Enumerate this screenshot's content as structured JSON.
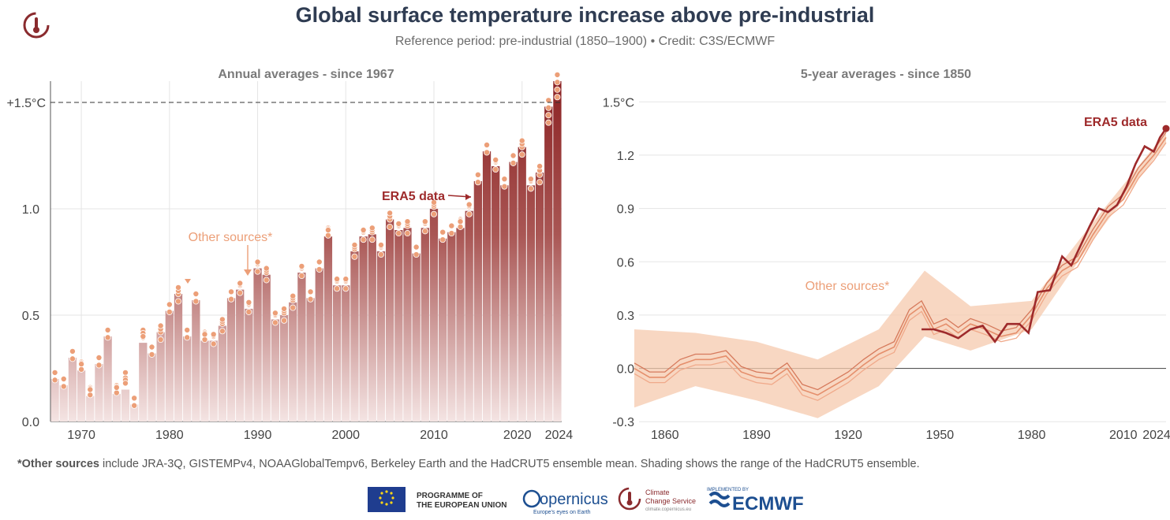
{
  "header": {
    "title": "Global surface temperature increase above pre-industrial",
    "subtitle": "Reference period: pre-industrial (1850–1900) • Credit: C3S/ECMWF"
  },
  "footnote": {
    "bold": "*Other sources",
    "rest": " include JRA-3Q, GISTEMPv4, NOAAGlobalTempv6, Berkeley Earth and the HadCRUT5 ensemble mean. Shading shows the range of the HadCRUT5 ensemble."
  },
  "footer": {
    "eu_line1": "PROGRAMME OF",
    "eu_line2": "THE EUROPEAN UNION",
    "copernicus": "opernicus",
    "copernicus_tag": "Europe's eyes on Earth",
    "c3s_line1": "Climate",
    "c3s_line2": "Change Service",
    "c3s_url": "climate.copernicus.eu",
    "ecmwf_small": "IMPLEMENTED BY",
    "ecmwf": "ECMWF"
  },
  "colors": {
    "era5": "#9e2a2b",
    "other": "#ec9f78",
    "shade": "#f6c9ae",
    "title": "#2f3c52",
    "threshold": "#333333"
  },
  "chart_data": [
    {
      "type": "bar",
      "title": "Annual averages - since 1967",
      "x": [
        1967,
        1968,
        1969,
        1970,
        1971,
        1972,
        1973,
        1974,
        1975,
        1976,
        1977,
        1978,
        1979,
        1980,
        1981,
        1982,
        1983,
        1984,
        1985,
        1986,
        1987,
        1988,
        1989,
        1990,
        1991,
        1992,
        1993,
        1994,
        1995,
        1996,
        1997,
        1998,
        1999,
        2000,
        2001,
        2002,
        2003,
        2004,
        2005,
        2006,
        2007,
        2008,
        2009,
        2010,
        2011,
        2012,
        2013,
        2014,
        2015,
        2016,
        2017,
        2018,
        2019,
        2020,
        2021,
        2022,
        2023,
        2024
      ],
      "series": [
        {
          "name": "ERA5 data",
          "values": [
            0.2,
            0.17,
            0.3,
            0.24,
            0.12,
            0.27,
            0.4,
            0.13,
            0.15,
            0.08,
            0.37,
            0.32,
            0.42,
            0.52,
            0.6,
            0.4,
            0.57,
            0.38,
            0.38,
            0.45,
            0.58,
            0.62,
            0.53,
            0.72,
            0.69,
            0.48,
            0.5,
            0.56,
            0.7,
            0.58,
            0.72,
            0.87,
            0.64,
            0.64,
            0.8,
            0.87,
            0.88,
            0.8,
            0.95,
            0.9,
            0.91,
            0.79,
            0.91,
            1.0,
            0.86,
            0.89,
            0.91,
            0.99,
            1.13,
            1.27,
            1.2,
            1.11,
            1.22,
            1.29,
            1.11,
            1.17,
            1.48,
            1.6
          ]
        },
        {
          "name": "Other sources*",
          "values": [
            0.23,
            0.2,
            0.33,
            0.28,
            0.16,
            0.3,
            0.43,
            0.17,
            0.23,
            0.11,
            0.43,
            0.35,
            0.42,
            0.55,
            0.6,
            0.43,
            0.6,
            0.42,
            0.4,
            0.46,
            0.61,
            0.64,
            0.55,
            0.74,
            0.7,
            0.5,
            0.51,
            0.57,
            0.72,
            0.61,
            0.75,
            0.91,
            0.66,
            0.66,
            0.81,
            0.89,
            0.89,
            0.82,
            0.95,
            0.92,
            0.92,
            0.82,
            0.93,
            1.01,
            0.89,
            0.92,
            0.95,
            1.01,
            1.16,
            1.3,
            1.22,
            1.14,
            1.25,
            1.29,
            1.13,
            1.16,
            1.44,
            1.56
          ]
        }
      ],
      "ylim": [
        0,
        1.6
      ],
      "yticks": [
        "0.0",
        "0.5",
        "1.0",
        "+1.5°C"
      ],
      "xticks": [
        "1970",
        "1980",
        "1990",
        "2000",
        "2010",
        "2020",
        "2024"
      ],
      "threshold": 1.5,
      "annotations": {
        "era5": "ERA5 data",
        "other": "Other sources*"
      }
    },
    {
      "type": "line",
      "title": "5-year averages - since 1850",
      "xlim": [
        1850,
        2024
      ],
      "ylim": [
        -0.33,
        1.55
      ],
      "yticks": [
        "1.5°C",
        "1.2",
        "0.9",
        "0.6",
        "0.3",
        "0.0",
        "-0.3"
      ],
      "xticks": [
        "1860",
        "1890",
        "1920",
        "1950",
        "1980",
        "2010",
        "2024"
      ],
      "series": [
        {
          "name": "ERA5 data",
          "x": [
            1944,
            1948,
            1952,
            1956,
            1960,
            1964,
            1968,
            1972,
            1976,
            1979,
            1982,
            1986,
            1990,
            1993,
            1996,
            1999,
            2002,
            2005,
            2008,
            2011,
            2014,
            2017,
            2020,
            2022,
            2024
          ],
          "y": [
            0.22,
            0.22,
            0.2,
            0.17,
            0.22,
            0.24,
            0.15,
            0.25,
            0.25,
            0.2,
            0.43,
            0.44,
            0.63,
            0.58,
            0.69,
            0.8,
            0.9,
            0.88,
            0.92,
            1.02,
            1.15,
            1.25,
            1.22,
            1.3,
            1.35
          ]
        },
        {
          "name": "Other sources*",
          "x": [
            1850,
            1855,
            1860,
            1865,
            1870,
            1875,
            1880,
            1885,
            1890,
            1895,
            1900,
            1905,
            1910,
            1915,
            1920,
            1925,
            1930,
            1935,
            1940,
            1944,
            1948,
            1952,
            1956,
            1960,
            1965,
            1970,
            1975,
            1980,
            1985,
            1990,
            1995,
            2000,
            2005,
            2010,
            2015,
            2020,
            2024
          ],
          "y": [
            0.0,
            -0.05,
            -0.05,
            0.02,
            0.05,
            0.05,
            0.07,
            -0.02,
            -0.05,
            -0.06,
            0.0,
            -0.12,
            -0.15,
            -0.1,
            -0.05,
            0.02,
            0.08,
            0.12,
            0.3,
            0.35,
            0.22,
            0.25,
            0.2,
            0.25,
            0.22,
            0.18,
            0.2,
            0.3,
            0.45,
            0.55,
            0.6,
            0.75,
            0.88,
            0.95,
            1.1,
            1.2,
            1.3
          ]
        }
      ],
      "range_band": {
        "x": [
          1850,
          1870,
          1890,
          1910,
          1930,
          1945,
          1960,
          1980,
          2000,
          2024
        ],
        "lower": [
          -0.22,
          -0.1,
          -0.18,
          -0.28,
          -0.1,
          0.18,
          0.1,
          0.22,
          0.72,
          1.27
        ],
        "upper": [
          0.22,
          0.2,
          0.15,
          0.05,
          0.22,
          0.55,
          0.35,
          0.38,
          0.82,
          1.33
        ]
      },
      "annotations": {
        "era5": "ERA5 data",
        "other": "Other sources*"
      }
    }
  ]
}
